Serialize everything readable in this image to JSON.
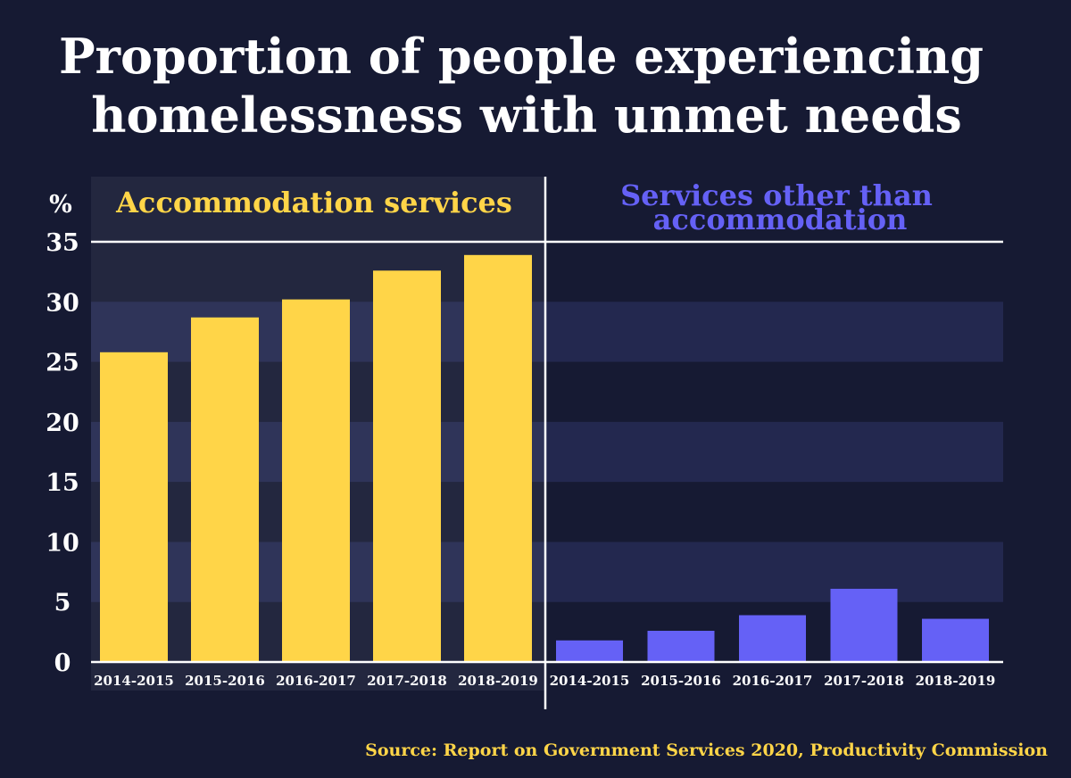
{
  "chart_data": {
    "type": "bar",
    "title_lines": [
      "Proportion of people experiencing",
      "homelessness with unmet needs"
    ],
    "ylabel": "%",
    "ylim": [
      0,
      35
    ],
    "yticks": [
      0,
      5,
      10,
      15,
      20,
      25,
      30,
      35
    ],
    "categories": [
      "2014-2015",
      "2015-2016",
      "2016-2017",
      "2017-2018",
      "2018-2019"
    ],
    "series": [
      {
        "name": "Accommodation services",
        "color": "#ffd548",
        "values": [
          25.8,
          28.7,
          30.2,
          32.6,
          33.9
        ]
      },
      {
        "name_lines": [
          "Services other than",
          "accommodation"
        ],
        "color": "#6561f6",
        "values": [
          1.8,
          2.6,
          3.9,
          6.1,
          3.6
        ]
      }
    ],
    "source": "Source: Report on Government Services 2020, Productivity Commission"
  }
}
